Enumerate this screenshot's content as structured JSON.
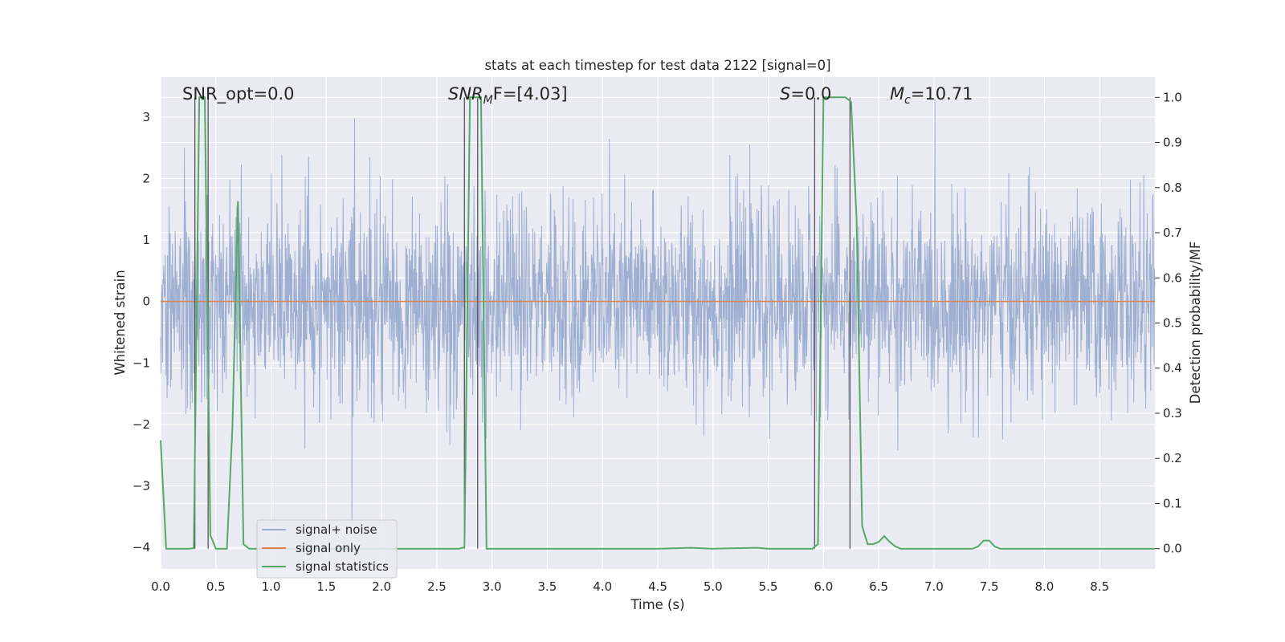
{
  "chart_data": {
    "type": "line",
    "title": "stats at each timestep for test data 2122 [signal=0]",
    "xlabel": "Time (s)",
    "ylabel": "Whitened strain",
    "ylabel_right": "Detection probability/MF",
    "xlim": [
      0.0,
      9.0
    ],
    "ylim": [
      -4.35,
      3.65
    ],
    "ylim_right": [
      -0.045,
      1.045
    ],
    "xticks": [
      "0.0",
      "0.5",
      "1.0",
      "1.5",
      "2.0",
      "2.5",
      "3.0",
      "3.5",
      "4.0",
      "4.5",
      "5.0",
      "5.5",
      "6.0",
      "6.5",
      "7.0",
      "7.5",
      "8.0",
      "8.5"
    ],
    "yticks": [
      "3",
      "2",
      "1",
      "0",
      "−1",
      "−2",
      "−3",
      "−4"
    ],
    "yticks_right": [
      "1.0",
      "0.9",
      "0.8",
      "0.7",
      "0.6",
      "0.5",
      "0.4",
      "0.3",
      "0.2",
      "0.1",
      "0.0"
    ],
    "grid": true,
    "legend_position": "lower-left",
    "annotations": {
      "snr_opt": "SNR_opt=0.0",
      "snr_mf_sym": "SNR",
      "snr_mf_sub": "M",
      "snr_mf_rest": "F=[4.03]",
      "s_sym": "S",
      "s_rest": "=0.0",
      "mc_sym": "M",
      "mc_sub": "c",
      "mc_rest": "=10.71"
    },
    "series": [
      {
        "name": "signal+ noise",
        "color": "#9aaccf",
        "description_values": "whitened noise, mostly within ±1.7, spikes to about ±3.3",
        "seed": 2122,
        "approx_std": 0.8
      },
      {
        "name": "signal only",
        "color": "#dd8452",
        "values_constant": 0.0
      },
      {
        "name": "signal statistics",
        "color": "#55a868",
        "x": [
          0.0,
          0.05,
          0.1,
          0.15,
          0.2,
          0.25,
          0.3,
          0.35,
          0.4,
          0.45,
          0.5,
          0.55,
          0.6,
          0.65,
          0.7,
          0.75,
          0.8,
          0.85,
          0.9,
          0.95,
          1.0,
          1.5,
          2.0,
          2.5,
          2.7,
          2.75,
          2.8,
          2.85,
          2.9,
          2.95,
          3.0,
          3.5,
          4.0,
          4.5,
          4.8,
          5.0,
          5.4,
          5.5,
          5.9,
          5.95,
          6.0,
          6.05,
          6.1,
          6.15,
          6.2,
          6.25,
          6.3,
          6.35,
          6.4,
          6.45,
          6.5,
          6.55,
          6.6,
          6.65,
          6.7,
          6.75,
          6.8,
          7.0,
          7.35,
          7.4,
          7.45,
          7.5,
          7.55,
          7.6,
          8.0,
          8.5,
          9.0
        ],
        "values": [
          0.24,
          0.0,
          0.0,
          0.0,
          0.0,
          0.0,
          0.001,
          1.0,
          1.0,
          0.03,
          0.0,
          0.0,
          0.0,
          0.27,
          0.77,
          0.01,
          0.0,
          0.0,
          0.0,
          0.0,
          0.0,
          0.0,
          0.0,
          0.0,
          0.0,
          0.003,
          1.0,
          1.0,
          1.0,
          0.0,
          0.0,
          0.0,
          0.0,
          0.0,
          0.002,
          0.0,
          0.002,
          0.0,
          0.0,
          0.01,
          1.0,
          1.0,
          1.0,
          1.0,
          1.0,
          0.99,
          0.73,
          0.05,
          0.01,
          0.01,
          0.015,
          0.028,
          0.015,
          0.005,
          0.0,
          0.0,
          0.0,
          0.0,
          0.0,
          0.005,
          0.018,
          0.018,
          0.005,
          0.0,
          0.0,
          0.0,
          0.0
        ]
      }
    ],
    "markers": {
      "color": "#555555",
      "x": [
        0.31,
        0.43,
        2.75,
        2.87,
        5.92,
        6.24
      ]
    }
  }
}
